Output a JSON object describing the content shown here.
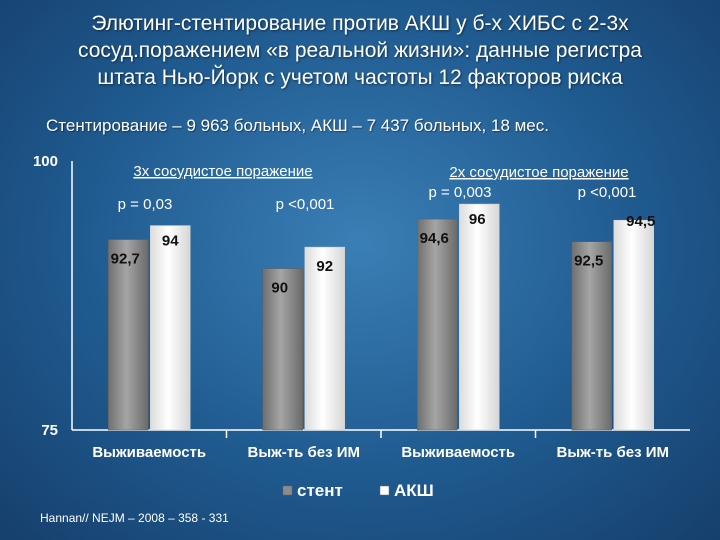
{
  "slide": {
    "title_lines": [
      "Элютинг-стентирование против АКШ  у б-х ХИБС с 2-3х",
      "сосуд.поражением «в реальной жизни»: данные регистра",
      "штата Нью-Йорк с учетом частоты 12 факторов риска"
    ],
    "subtitle": "Стентирование – 9 963 больных, АКШ – 7 437 больных, 18 мес.",
    "footnote": "Hannan// NEJM – 2008 – 358 - 331"
  },
  "chart_data": {
    "type": "bar",
    "ylim": [
      75,
      100
    ],
    "yticks": [
      "100",
      "75"
    ],
    "categories": [
      "Выживаемость",
      "Выж-ть без ИМ",
      "Выживаемость",
      "Выж-ть без ИМ"
    ],
    "series": [
      {
        "name": "стент",
        "color": "#8c8c8c",
        "values": [
          92.7,
          90,
          94.6,
          92.5
        ],
        "labels": [
          "92,7",
          "90",
          "94,6",
          "92,5"
        ]
      },
      {
        "name": "АКШ",
        "color": "#ffffff",
        "values": [
          94,
          92,
          96,
          94.5
        ],
        "labels": [
          "94",
          "92",
          "96",
          "94,5"
        ]
      }
    ],
    "groups": [
      {
        "label": "3х сосудистое поражение",
        "categories": [
          0,
          1
        ]
      },
      {
        "label": "2х сосудистое поражение",
        "categories": [
          2,
          3
        ]
      }
    ],
    "pvalues": [
      "p = 0,03",
      "p <0,001",
      "p = 0,003",
      "p <0,001"
    ],
    "legend_position": "bottom"
  }
}
